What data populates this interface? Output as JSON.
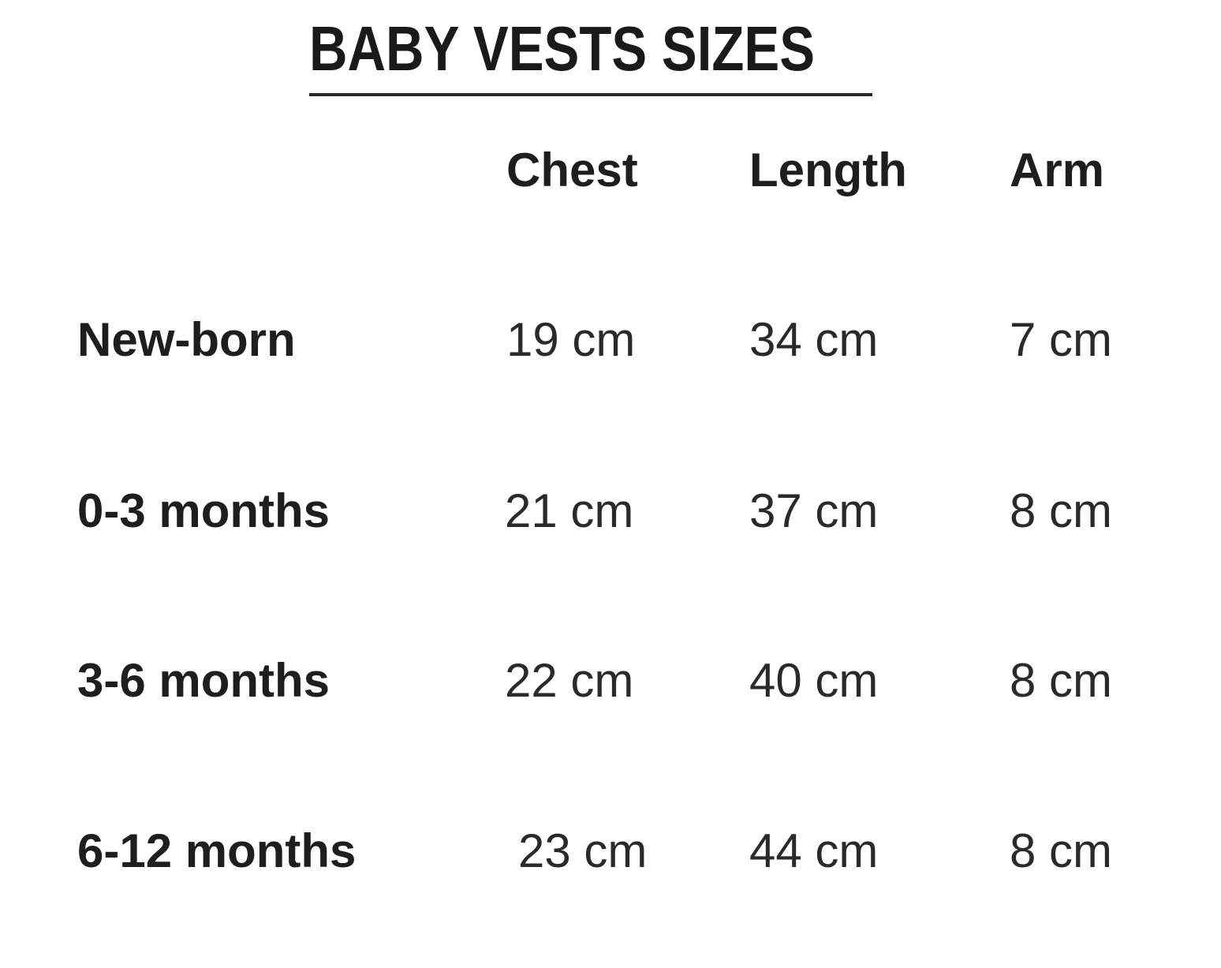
{
  "title": "BABY VESTS SIZES",
  "table": {
    "headers": [
      "Chest",
      "Length",
      "Arm"
    ],
    "rows": [
      {
        "size": "New-born",
        "chest": "19 cm",
        "length": "34 cm",
        "arm": "7 cm"
      },
      {
        "size": "0-3 months",
        "chest": "21 cm",
        "length": "37 cm",
        "arm": "8 cm"
      },
      {
        "size": "3-6 months",
        "chest": "22 cm",
        "length": "40 cm",
        "arm": "8 cm"
      },
      {
        "size": "6-12 months",
        "chest": "23 cm",
        "length": "44 cm",
        "arm": "8 cm"
      }
    ]
  }
}
